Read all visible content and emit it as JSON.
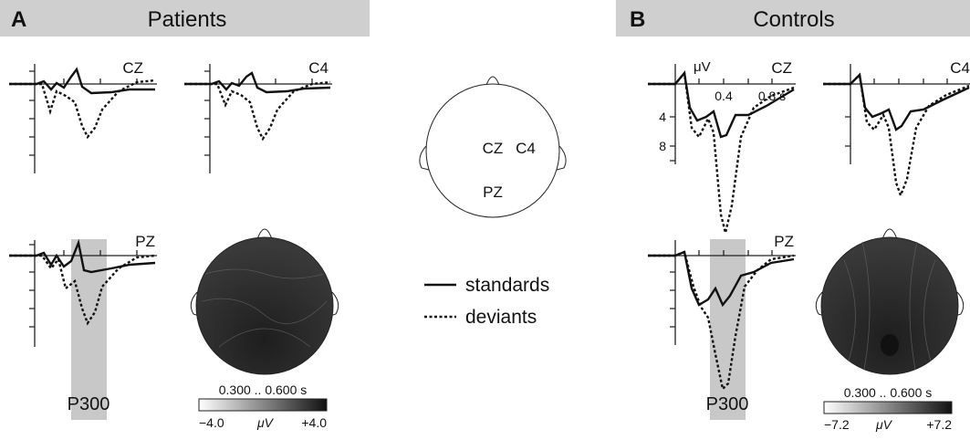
{
  "panels": [
    {
      "letter": "A",
      "title": "Patients",
      "channels": [
        "CZ",
        "C4",
        "PZ"
      ],
      "component": "P300",
      "colorbar": {
        "range": "0.300 .. 0.600 s",
        "min": "−4.0",
        "unit": "μV",
        "max": "+4.0"
      }
    },
    {
      "letter": "B",
      "title": "Controls",
      "channels": [
        "CZ",
        "C4",
        "PZ"
      ],
      "component": "P300",
      "colorbar": {
        "range": "0.300 .. 0.600 s",
        "min": "−7.2",
        "unit": "μV",
        "max": "+7.2"
      },
      "axis": {
        "unit": "μV",
        "y_labels": [
          "4",
          "8"
        ],
        "x_labels": [
          "0.4",
          "0.8 s"
        ]
      }
    }
  ],
  "head": {
    "labels": [
      "CZ",
      "C4",
      "PZ"
    ]
  },
  "legend": [
    "standards",
    "deviants"
  ]
}
